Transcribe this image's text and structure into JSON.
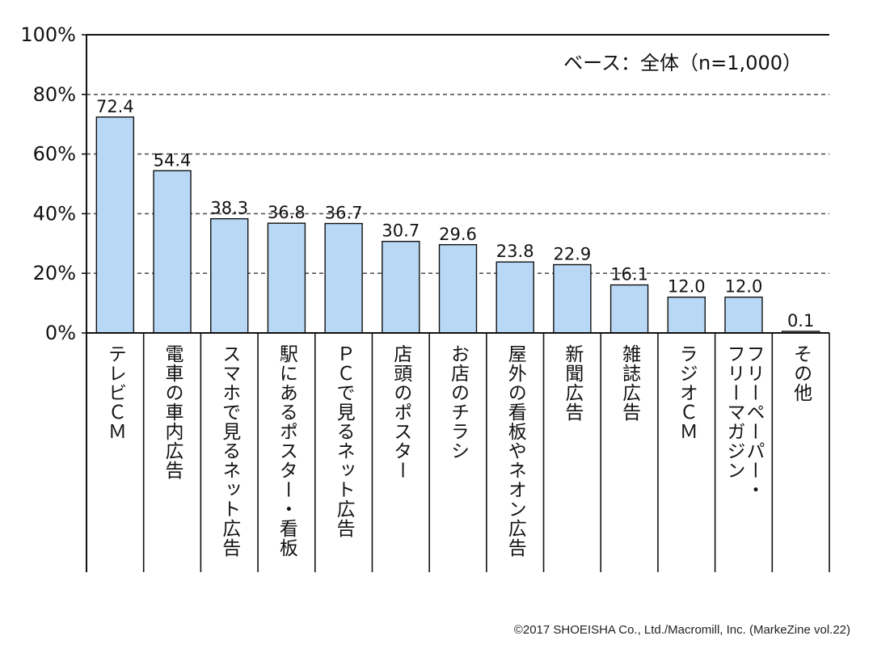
{
  "chart_data": {
    "type": "bar",
    "categories": [
      "テレビＣＭ",
      "電車の車内広告",
      "スマホで見るネット広告",
      "駅にあるポスター・看板",
      "ＰＣで見るネット広告",
      "店頭のポスター",
      "お店のチラシ",
      "屋外の看板やネオン広告",
      "新聞広告",
      "雑誌広告",
      "ラジオＣＭ",
      "フリーペーパー・\nフリーマガジン",
      "その他"
    ],
    "values": [
      72.4,
      54.4,
      38.3,
      36.8,
      36.7,
      30.7,
      29.6,
      23.8,
      22.9,
      16.1,
      12.0,
      12.0,
      0.1
    ],
    "value_labels": [
      "72.4",
      "54.4",
      "38.3",
      "36.8",
      "36.7",
      "30.7",
      "29.6",
      "23.8",
      "22.9",
      "16.1",
      "12.0",
      "12.0",
      "0.1"
    ],
    "yticks": [
      "0%",
      "20%",
      "40%",
      "60%",
      "80%",
      "100%"
    ],
    "ylim": [
      0,
      100
    ],
    "grid": "dashed-horizontal",
    "annotation": "ベース：全体（n=1,000）",
    "bar_color": "#b8d8f6",
    "bar_stroke": "#111111"
  },
  "footer": {
    "copyright": "©2017 SHOEISHA Co., Ltd./Macromill, Inc. (MarkeZine vol.22)"
  }
}
